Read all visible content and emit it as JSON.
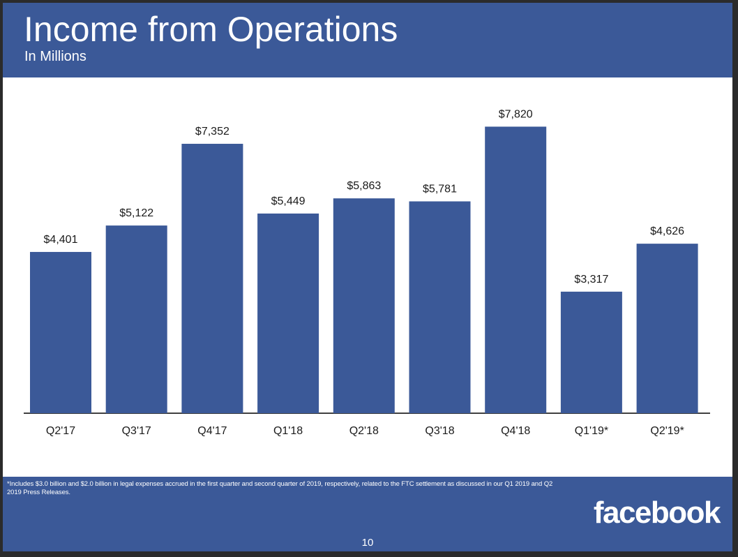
{
  "slide": {
    "title": "Income from Operations",
    "subtitle": "In Millions",
    "footnote": "*Includes $3.0 billion and $2.0 billion in legal expenses accrued in the first quarter and second quarter of 2019, respectively, related to the FTC settlement as discussed in our Q1 2019 and Q2 2019 Press Releases.",
    "logo_text": "facebook",
    "page_number": "10"
  },
  "colors": {
    "brand": "#3b5998",
    "bar": "#3b5998",
    "axis": "#000000",
    "text": "#1a1a1a"
  },
  "chart_data": {
    "type": "bar",
    "title": "Income from Operations",
    "subtitle": "In Millions",
    "categories": [
      "Q2'17",
      "Q3'17",
      "Q4'17",
      "Q1'18",
      "Q2'18",
      "Q3'18",
      "Q4'18",
      "Q1'19*",
      "Q2'19*"
    ],
    "values": [
      4401,
      5122,
      7352,
      5449,
      5863,
      5781,
      7820,
      3317,
      4626
    ],
    "value_labels": [
      "$4,401",
      "$5,122",
      "$7,352",
      "$5,449",
      "$5,863",
      "$5,781",
      "$7,820",
      "$3,317",
      "$4,626"
    ],
    "xlabel": "",
    "ylabel": "",
    "ylim": [
      0,
      9000
    ],
    "grid": false,
    "legend": "none"
  }
}
